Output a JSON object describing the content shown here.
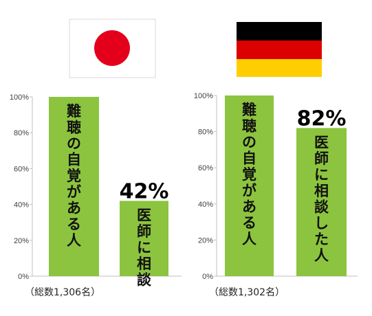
{
  "colors": {
    "bar": "#8cc43f",
    "axis": "#bfbfbf",
    "japan_red": "#e4001b",
    "germany_black": "#000000",
    "germany_red": "#dd0000",
    "germany_gold": "#ffce00"
  },
  "chart_data": [
    {
      "type": "bar",
      "country_flag": "japan-flag",
      "ylim": [
        0,
        100
      ],
      "yticks": [
        "0%",
        "20%",
        "40%",
        "60%",
        "80%",
        "100%"
      ],
      "categories": [
        "難聴の自覚がある人",
        "医師に相談"
      ],
      "values": [
        100,
        42
      ],
      "data_labels": [
        "",
        "42%"
      ],
      "footnote": "（総数1,306名）"
    },
    {
      "type": "bar",
      "country_flag": "germany-flag",
      "ylim": [
        0,
        100
      ],
      "yticks": [
        "0%",
        "20%",
        "40%",
        "60%",
        "80%",
        "100%"
      ],
      "categories": [
        "難聴の自覚がある人",
        "医師に相談した人"
      ],
      "values": [
        100,
        82
      ],
      "data_labels": [
        "",
        "82%"
      ],
      "footnote": "（総数1,302名）"
    }
  ]
}
